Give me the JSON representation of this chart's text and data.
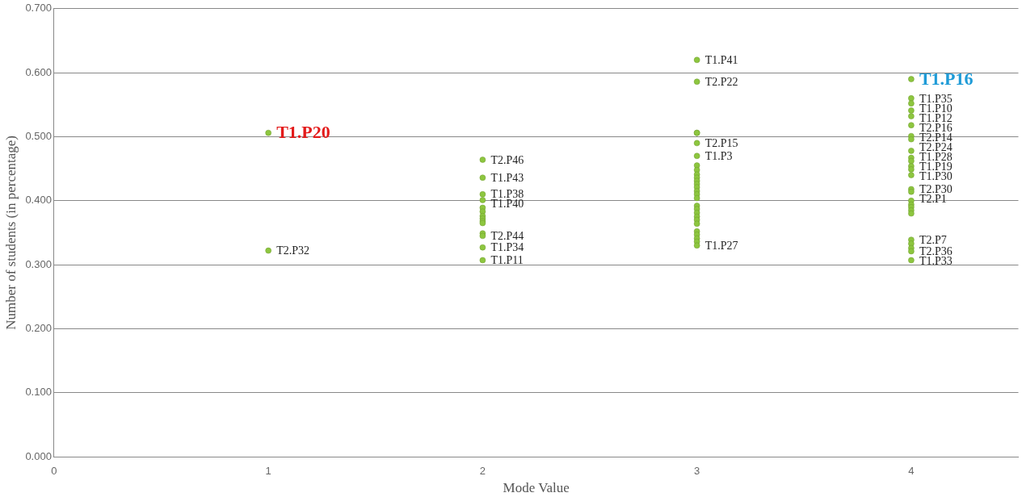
{
  "chart_data": {
    "type": "scatter",
    "xlabel": "Mode Value",
    "ylabel": "Number of students (in percentage)",
    "xlim": [
      0,
      4.5
    ],
    "xticks": [
      0,
      1,
      2,
      3,
      4
    ],
    "ylim": [
      0,
      0.7
    ],
    "yticks": [
      {
        "value": 0,
        "label": "0.000"
      },
      {
        "value": 0.1,
        "label": "0.100"
      },
      {
        "value": 0.2,
        "label": "0.200"
      },
      {
        "value": 0.3,
        "label": "0.300"
      },
      {
        "value": 0.4,
        "label": "0.400"
      },
      {
        "value": 0.5,
        "label": "0.500"
      },
      {
        "value": 0.6,
        "label": "0.600"
      },
      {
        "value": 0.7,
        "label": "0.700"
      }
    ],
    "grid": "y",
    "legend": false,
    "marker": "circle",
    "series": [
      {
        "color": "#8dc63f",
        "x": [
          1,
          1,
          2,
          2,
          2,
          2,
          2,
          2,
          2,
          2,
          2,
          2,
          2,
          2,
          2,
          2,
          3,
          3,
          3,
          3,
          3,
          3,
          3,
          3,
          3,
          3,
          3,
          3,
          3,
          3,
          3,
          3,
          3,
          3,
          3,
          3,
          3,
          3,
          3,
          3,
          3,
          3,
          3,
          4,
          4,
          4,
          4,
          4,
          4,
          4,
          4,
          4,
          4,
          4,
          4,
          4,
          4,
          4,
          4,
          4,
          4,
          4,
          4,
          4,
          4,
          4,
          4,
          4,
          4
        ],
        "values": [
          0.506,
          0.322,
          0.464,
          0.436,
          0.41,
          0.401,
          0.389,
          0.383,
          0.376,
          0.372,
          0.368,
          0.365,
          0.349,
          0.345,
          0.327,
          0.307,
          0.62,
          0.586,
          0.506,
          0.506,
          0.49,
          0.47,
          0.455,
          0.448,
          0.441,
          0.436,
          0.431,
          0.426,
          0.421,
          0.415,
          0.41,
          0.404,
          0.392,
          0.387,
          0.381,
          0.375,
          0.37,
          0.364,
          0.352,
          0.347,
          0.341,
          0.336,
          0.33,
          0.59,
          0.56,
          0.552,
          0.541,
          0.532,
          0.518,
          0.501,
          0.496,
          0.478,
          0.467,
          0.462,
          0.454,
          0.449,
          0.44,
          0.418,
          0.414,
          0.4,
          0.394,
          0.39,
          0.385,
          0.38,
          0.339,
          0.333,
          0.326,
          0.321,
          0.307
        ],
        "value_labels": [
          null,
          "T2.P32",
          "T2.P46",
          "T1.P43",
          "T1.P38",
          "T1.P40",
          null,
          null,
          null,
          null,
          null,
          null,
          null,
          "T2.P44",
          "T1.P34",
          "T1.P11",
          "T1.P41",
          "T2.P22",
          null,
          null,
          "T2.P15",
          "T1.P3",
          null,
          null,
          null,
          null,
          null,
          null,
          null,
          null,
          null,
          null,
          null,
          null,
          null,
          null,
          null,
          null,
          null,
          null,
          null,
          null,
          "T1.P27",
          null,
          "T1.P35",
          "T1.P10",
          "T1.P12",
          "T2.P16",
          "T2.P14",
          "T2.P24",
          "T1.P28",
          "T1.P19",
          null,
          null,
          null,
          null,
          "T1.P30",
          "T2.P30",
          "T2.P1",
          null,
          null,
          null,
          null,
          null,
          "T2.P7",
          null,
          null,
          "T2.P36",
          "T1.P33"
        ]
      }
    ],
    "annotations": [
      {
        "text": "T1.P20",
        "x": 1,
        "y": 0.506
      },
      {
        "text": "T1.P16",
        "x": 4,
        "y": 0.59
      }
    ]
  }
}
